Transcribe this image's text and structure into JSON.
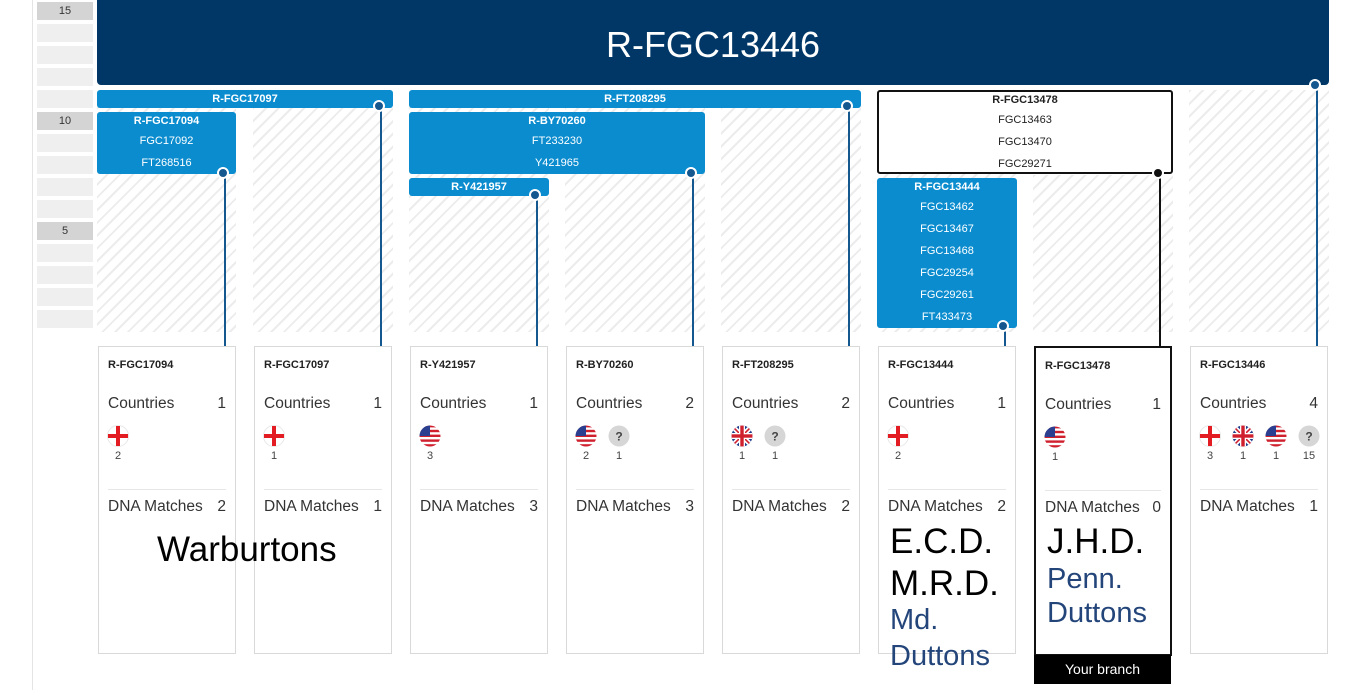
{
  "scale": [
    "15",
    "",
    "",
    "",
    "",
    "10",
    "",
    "",
    "",
    "",
    "5",
    "",
    "",
    "",
    ""
  ],
  "root": {
    "label": "R-FGC13446"
  },
  "branches": [
    {
      "id": "b1",
      "labels": [
        "R-FGC17094",
        "FGC17092",
        "FT268516"
      ]
    },
    {
      "id": "b2",
      "labels": [
        "R-FGC17097"
      ]
    },
    {
      "id": "b3",
      "labels": [
        "R-BY70260",
        "FT233230",
        "Y421965"
      ]
    },
    {
      "id": "b4",
      "labels": [
        "R-Y421957"
      ]
    },
    {
      "id": "b5",
      "labels": [
        "R-FT208295"
      ]
    },
    {
      "id": "b6",
      "labels": [
        "R-FGC13478",
        "FGC13463",
        "FGC13470",
        "FGC29271"
      ]
    },
    {
      "id": "b7",
      "labels": [
        "R-FGC13444",
        "FGC13462",
        "FGC13467",
        "FGC13468",
        "FGC29254",
        "FGC29261",
        "FT433473"
      ]
    }
  ],
  "cards": [
    {
      "title": "R-FGC17094",
      "countries_label": "Countries",
      "countries": "1",
      "flags": [
        {
          "type": "england",
          "count": "2"
        }
      ],
      "dna_label": "DNA Matches",
      "dna": "2"
    },
    {
      "title": "R-FGC17097",
      "countries_label": "Countries",
      "countries": "1",
      "flags": [
        {
          "type": "england",
          "count": "1"
        }
      ],
      "dna_label": "DNA Matches",
      "dna": "1"
    },
    {
      "title": "R-Y421957",
      "countries_label": "Countries",
      "countries": "1",
      "flags": [
        {
          "type": "usa",
          "count": "3"
        }
      ],
      "dna_label": "DNA Matches",
      "dna": "3"
    },
    {
      "title": "R-BY70260",
      "countries_label": "Countries",
      "countries": "2",
      "flags": [
        {
          "type": "usa",
          "count": "2"
        },
        {
          "type": "unknown",
          "count": "1"
        }
      ],
      "dna_label": "DNA Matches",
      "dna": "3"
    },
    {
      "title": "R-FT208295",
      "countries_label": "Countries",
      "countries": "2",
      "flags": [
        {
          "type": "uk",
          "count": "1"
        },
        {
          "type": "unknown",
          "count": "1"
        }
      ],
      "dna_label": "DNA Matches",
      "dna": "2"
    },
    {
      "title": "R-FGC13444",
      "countries_label": "Countries",
      "countries": "1",
      "flags": [
        {
          "type": "england",
          "count": "2"
        }
      ],
      "dna_label": "DNA Matches",
      "dna": "2"
    },
    {
      "title": "R-FGC13478",
      "countries_label": "Countries",
      "countries": "1",
      "flags": [
        {
          "type": "usa",
          "count": "1"
        }
      ],
      "dna_label": "DNA Matches",
      "dna": "0"
    },
    {
      "title": "R-FGC13446",
      "countries_label": "Countries",
      "countries": "4",
      "flags": [
        {
          "type": "england",
          "count": "3"
        },
        {
          "type": "uk",
          "count": "1"
        },
        {
          "type": "usa",
          "count": "1"
        },
        {
          "type": "unknown",
          "count": "15"
        }
      ],
      "dna_label": "DNA Matches",
      "dna": "1"
    }
  ],
  "your_branch_label": "Your branch",
  "annotations": {
    "warburtons": "Warburtons",
    "ecd": "E.C.D.",
    "mrd": "M.R.D.",
    "md": "Md.",
    "duttons1": "Duttons",
    "jhd": "J.H.D.",
    "penn": "Penn.",
    "duttons2": "Duttons"
  },
  "colors": {
    "header": "#003766",
    "branch_blue": "#0a8ccf",
    "line_blue": "#15578f",
    "annotation_blue": "#23457a"
  }
}
